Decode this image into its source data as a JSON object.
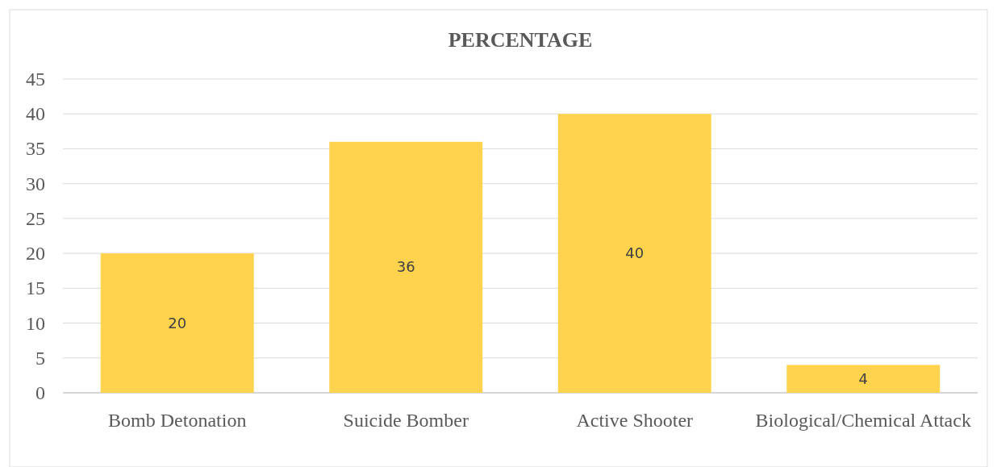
{
  "chart_data": {
    "type": "bar",
    "title": "PERCENTAGE",
    "categories": [
      "Bomb Detonation",
      "Suicide Bomber",
      "Active Shooter",
      "Biological/Chemical Attack"
    ],
    "values": [
      20,
      36,
      40,
      4
    ],
    "color": "#ffd34e",
    "ylim": [
      0,
      45
    ],
    "yticks": [
      0,
      5,
      10,
      15,
      20,
      25,
      30,
      35,
      40,
      45
    ],
    "grid": "y",
    "data_labels": true
  }
}
